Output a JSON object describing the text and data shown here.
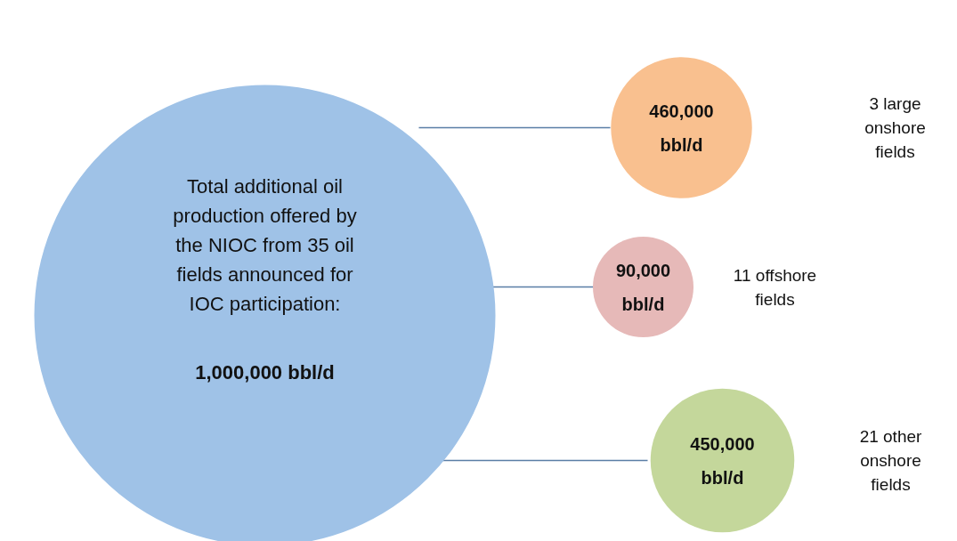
{
  "chart_data": {
    "type": "other",
    "annotations": [
      "Total additional oil production offered by the NIOC from 35 oil fields announced for IOC participation:",
      "1,000,000 bbl/d"
    ],
    "color": "#9fc2e7",
    "categories": [
      "3 large onshore fields",
      "11 offshore fields",
      "21 other onshore fields"
    ],
    "values": [
      460000,
      90000,
      450000
    ],
    "value_labels": [
      "460,000 bbl/d",
      "90,000 bbl/d",
      "450,000 bbl/d"
    ],
    "colors": [
      "#f9c08f",
      "#e6b9b8",
      "#c4d79b"
    ]
  }
}
